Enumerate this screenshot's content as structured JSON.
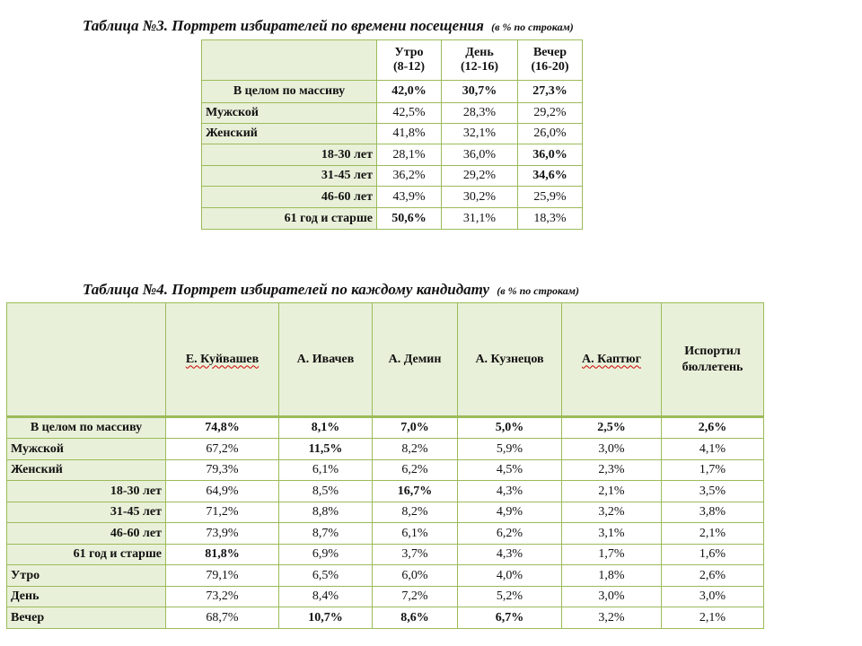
{
  "table3": {
    "title": "Таблица №3. Портрет избирателей по времени посещения",
    "note": "(в % по строкам)",
    "columns": [
      {
        "line1": "Утро",
        "line2": "(8-12)"
      },
      {
        "line1": "День",
        "line2": "(12-16)"
      },
      {
        "line1": "Вечер",
        "line2": "(16-20)"
      }
    ],
    "rows": [
      {
        "label": "В целом по массиву",
        "values": [
          "42,0%",
          "30,7%",
          "27,3%"
        ]
      },
      {
        "label": "Мужской",
        "values": [
          "42,5%",
          "28,3%",
          "29,2%"
        ]
      },
      {
        "label": "Женский",
        "values": [
          "41,8%",
          "32,1%",
          "26,0%"
        ]
      },
      {
        "label": "18-30 лет",
        "values": [
          "28,1%",
          "36,0%",
          "36,0%"
        ]
      },
      {
        "label": "31-45 лет",
        "values": [
          "36,2%",
          "29,2%",
          "34,6%"
        ]
      },
      {
        "label": "46-60 лет",
        "values": [
          "43,9%",
          "30,2%",
          "25,9%"
        ]
      },
      {
        "label": "61 год и старше",
        "values": [
          "50,6%",
          "31,1%",
          "18,3%"
        ]
      }
    ]
  },
  "table4": {
    "title": "Таблица №4. Портрет избирателей по каждому кандидату",
    "note": "(в % по строкам)",
    "columns": [
      {
        "line1": "Е. Куйвашев",
        "line2": ""
      },
      {
        "line1": "А. Ивачев",
        "line2": ""
      },
      {
        "line1": "А. Демин",
        "line2": ""
      },
      {
        "line1": "А. Кузнецов",
        "line2": ""
      },
      {
        "line1": "А. Каптюг",
        "line2": ""
      },
      {
        "line1": "Испортил",
        "line2": "бюллетень"
      }
    ],
    "rows": [
      {
        "label": "В целом по массиву",
        "values": [
          "74,8%",
          "8,1%",
          "7,0%",
          "5,0%",
          "2,5%",
          "2,6%"
        ]
      },
      {
        "label": "Мужской",
        "values": [
          "67,2%",
          "11,5%",
          "8,2%",
          "5,9%",
          "3,0%",
          "4,1%"
        ]
      },
      {
        "label": "Женский",
        "values": [
          "79,3%",
          "6,1%",
          "6,2%",
          "4,5%",
          "2,3%",
          "1,7%"
        ]
      },
      {
        "label": "18-30 лет",
        "values": [
          "64,9%",
          "8,5%",
          "16,7%",
          "4,3%",
          "2,1%",
          "3,5%"
        ]
      },
      {
        "label": "31-45 лет",
        "values": [
          "71,2%",
          "8,8%",
          "8,2%",
          "4,9%",
          "3,2%",
          "3,8%"
        ]
      },
      {
        "label": "46-60 лет",
        "values": [
          "73,9%",
          "8,7%",
          "6,1%",
          "6,2%",
          "3,1%",
          "2,1%"
        ]
      },
      {
        "label": "61 год и старше",
        "values": [
          "81,8%",
          "6,9%",
          "3,7%",
          "4,3%",
          "1,7%",
          "1,6%"
        ]
      },
      {
        "label": "Утро",
        "values": [
          "79,1%",
          "6,5%",
          "6,0%",
          "4,0%",
          "1,8%",
          "2,6%"
        ]
      },
      {
        "label": "День",
        "values": [
          "73,2%",
          "8,4%",
          "7,2%",
          "5,2%",
          "3,0%",
          "3,0%"
        ]
      },
      {
        "label": "Вечер",
        "values": [
          "68,7%",
          "10,7%",
          "8,6%",
          "6,7%",
          "3,2%",
          "2,1%"
        ]
      }
    ]
  }
}
